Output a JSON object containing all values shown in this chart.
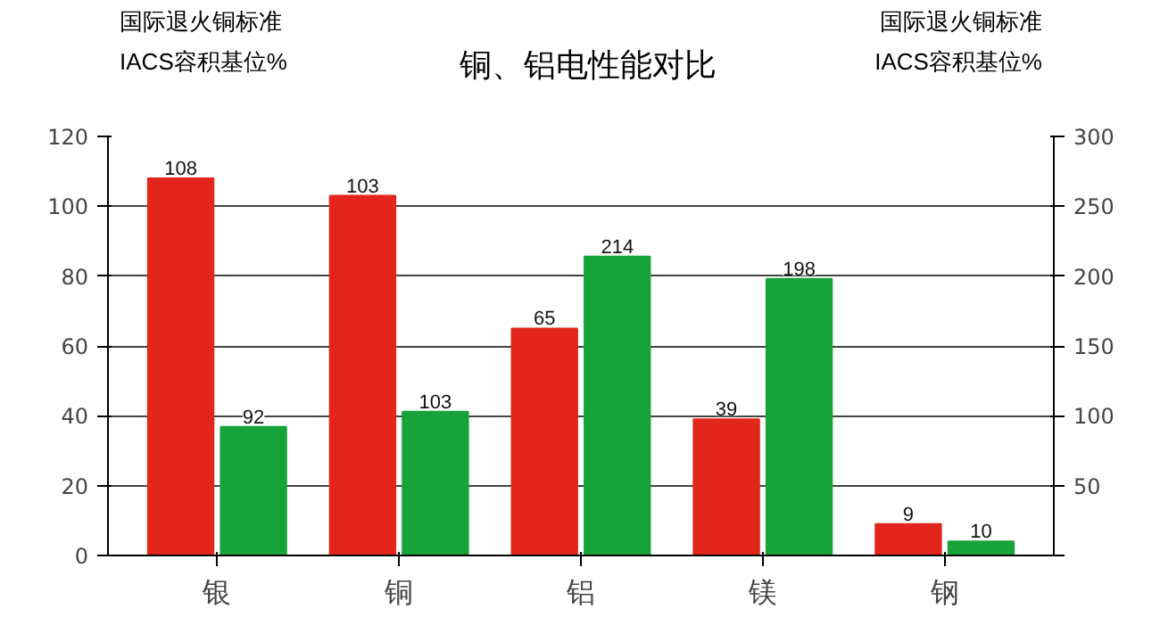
{
  "chart_data": {
    "type": "bar",
    "title": "铜、铝电性能对比",
    "ylabel": "国际退火铜标准\nIACS容积基位%",
    "y2label": "国际退火铜标准\nIACS容积基位%",
    "categories": [
      "银",
      "铜",
      "铝",
      "镁",
      "钢"
    ],
    "series": [
      {
        "color": "#e3261c",
        "values": [
          108,
          103,
          65,
          39,
          9
        ]
      },
      {
        "color": "#17a33a",
        "values": [
          92,
          103,
          214,
          198,
          10
        ],
        "axis": "y2"
      }
    ],
    "ylim": [
      0,
      120
    ],
    "yticks": [
      0,
      20,
      40,
      60,
      80,
      100,
      120
    ],
    "y2lim": [
      0,
      300
    ],
    "y2ticks": [
      {
        "value": 0,
        "label": null
      },
      50,
      100,
      150,
      200,
      250,
      300
    ],
    "data_labels": true,
    "grid": "y"
  }
}
